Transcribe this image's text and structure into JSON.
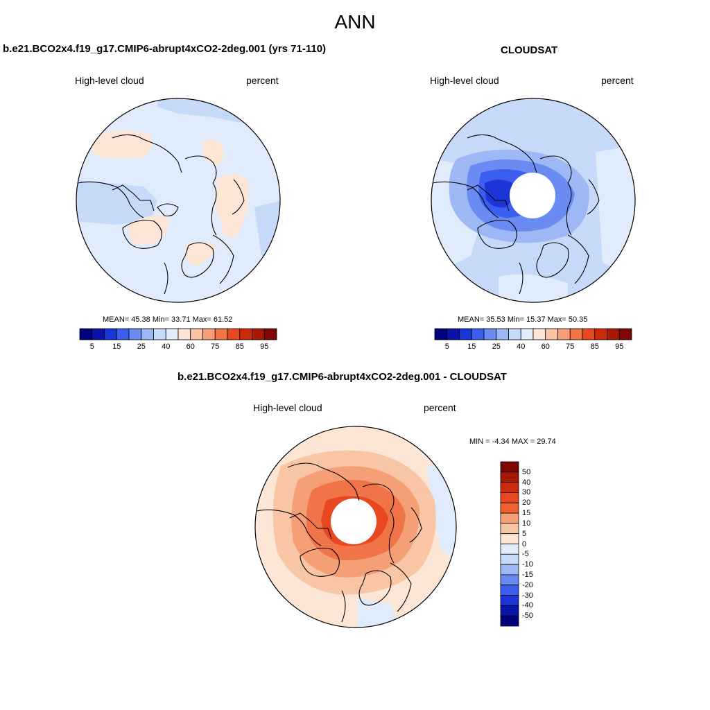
{
  "title": "ANN",
  "panels": [
    {
      "title": "b.e21.BCO2x4.f19_g17.CMIP6-abrupt4xCO2-2deg.001 (yrs 71-110)",
      "left_label": "High-level cloud",
      "right_label": "percent",
      "stats": "MEAN=  45.38  Min=  33.71  Max=  61.52"
    },
    {
      "title": "CLOUDSAT",
      "left_label": "High-level cloud",
      "right_label": "percent",
      "stats": "MEAN=  35.53  Min=  15.37  Max=  50.35"
    },
    {
      "title": "b.e21.BCO2x4.f19_g17.CMIP6-abrupt4xCO2-2deg.001 - CLOUDSAT",
      "left_label": "High-level cloud",
      "right_label": "percent",
      "stats": "MIN =  -4.34 MAX =  29.74"
    }
  ],
  "colorbar_top": {
    "labels": [
      "5",
      "15",
      "25",
      "40",
      "60",
      "75",
      "85",
      "95"
    ],
    "colors": [
      "#00007f",
      "#0a14a8",
      "#1c35d6",
      "#3a5ff0",
      "#6a8cf2",
      "#9db8f5",
      "#c6d9f8",
      "#e0ecfb",
      "#fde6d6",
      "#f9c6a5",
      "#f59f77",
      "#f07448",
      "#e8471f",
      "#cc2a0c",
      "#a91706",
      "#7e0605"
    ]
  },
  "colorbar_diff": {
    "labels": [
      "50",
      "40",
      "30",
      "20",
      "15",
      "10",
      "5",
      "0",
      "-5",
      "-10",
      "-15",
      "-20",
      "-30",
      "-40",
      "-50"
    ],
    "colors": [
      "#7e0605",
      "#a91706",
      "#cc2a0c",
      "#e8471f",
      "#f06030",
      "#f59f77",
      "#f9c6a5",
      "#fde6d6",
      "#e0ecfb",
      "#c6d9f8",
      "#9db8f5",
      "#6a8cf2",
      "#3a5ff0",
      "#1c35d6",
      "#0a14a8",
      "#00007f"
    ]
  }
}
